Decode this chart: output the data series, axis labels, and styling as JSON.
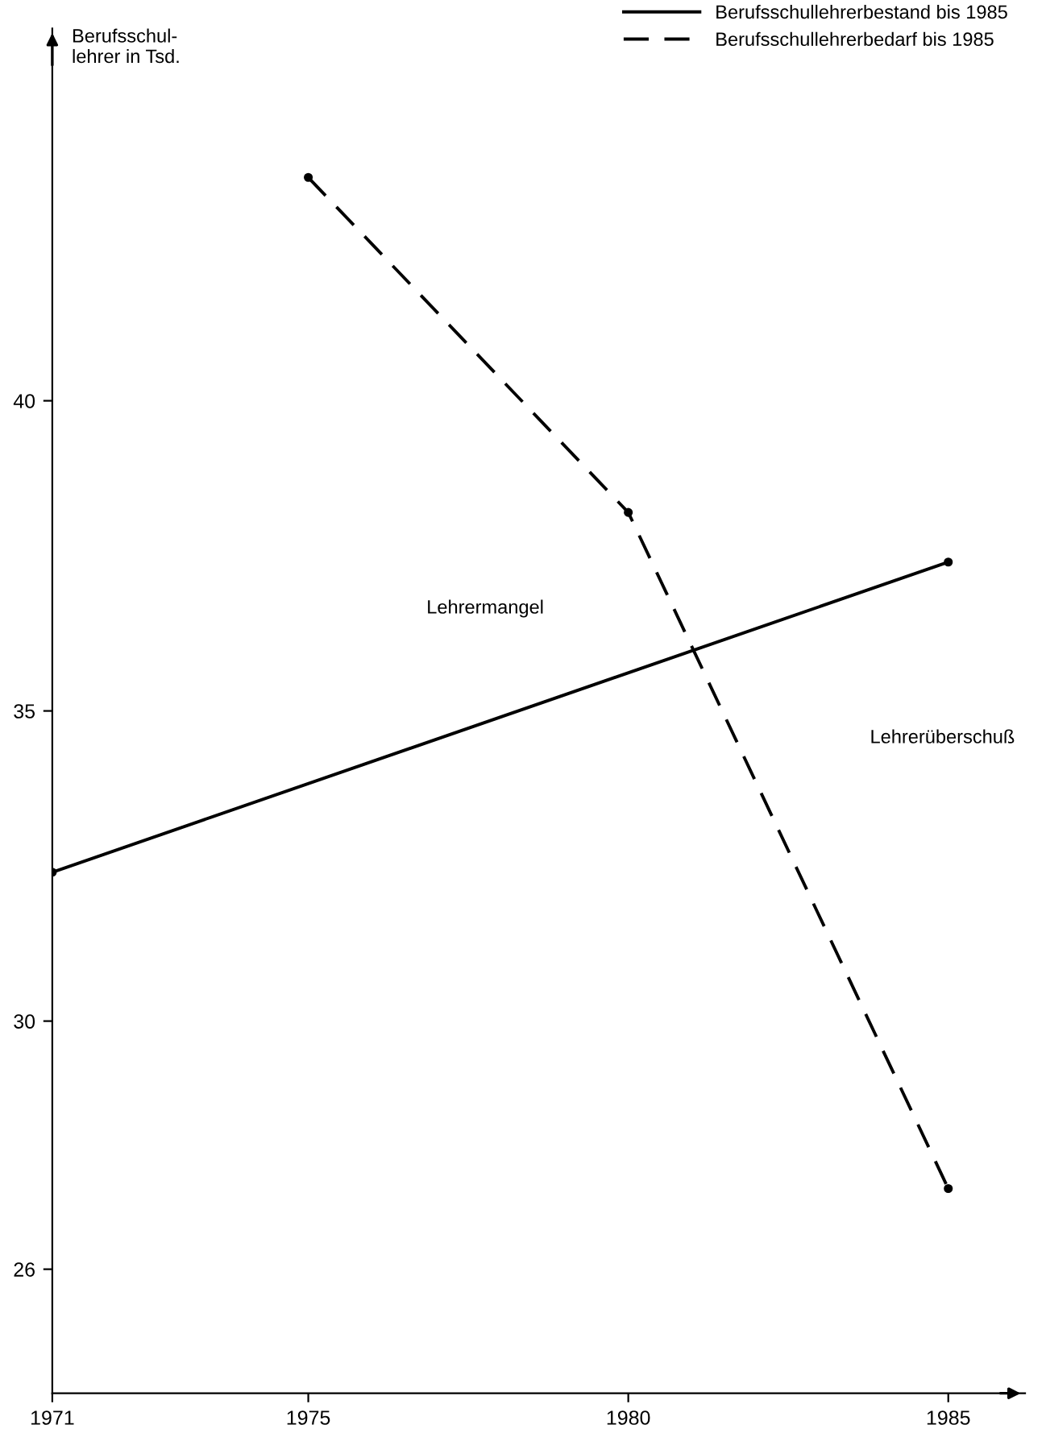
{
  "chart_data": {
    "type": "line",
    "ylabel": "Berufsschul-\nlehrer in Tsd.",
    "series": [
      {
        "name": "Berufsschullehrerbestand bis 1985",
        "color": "#000000",
        "line_style": "solid",
        "x": [
          1971,
          1985
        ],
        "values": [
          32.4,
          37.4
        ]
      },
      {
        "name": "Berufsschullehrerbedarf bis 1985",
        "color": "#000000",
        "line_style": "dashed",
        "x": [
          1975,
          1980,
          1985
        ],
        "values": [
          43.6,
          38.2,
          27.3
        ]
      }
    ],
    "xlim": [
      1971,
      1986.2
    ],
    "xticks": [
      1971,
      1975,
      1980,
      1985
    ],
    "ylim": [
      24,
      46
    ],
    "yticks": [
      26,
      30,
      35,
      40
    ],
    "annotations": [
      "Lehrermangel",
      "Lehrerüberschuß"
    ],
    "marker": "circle",
    "grid": false,
    "legend": "top right"
  }
}
